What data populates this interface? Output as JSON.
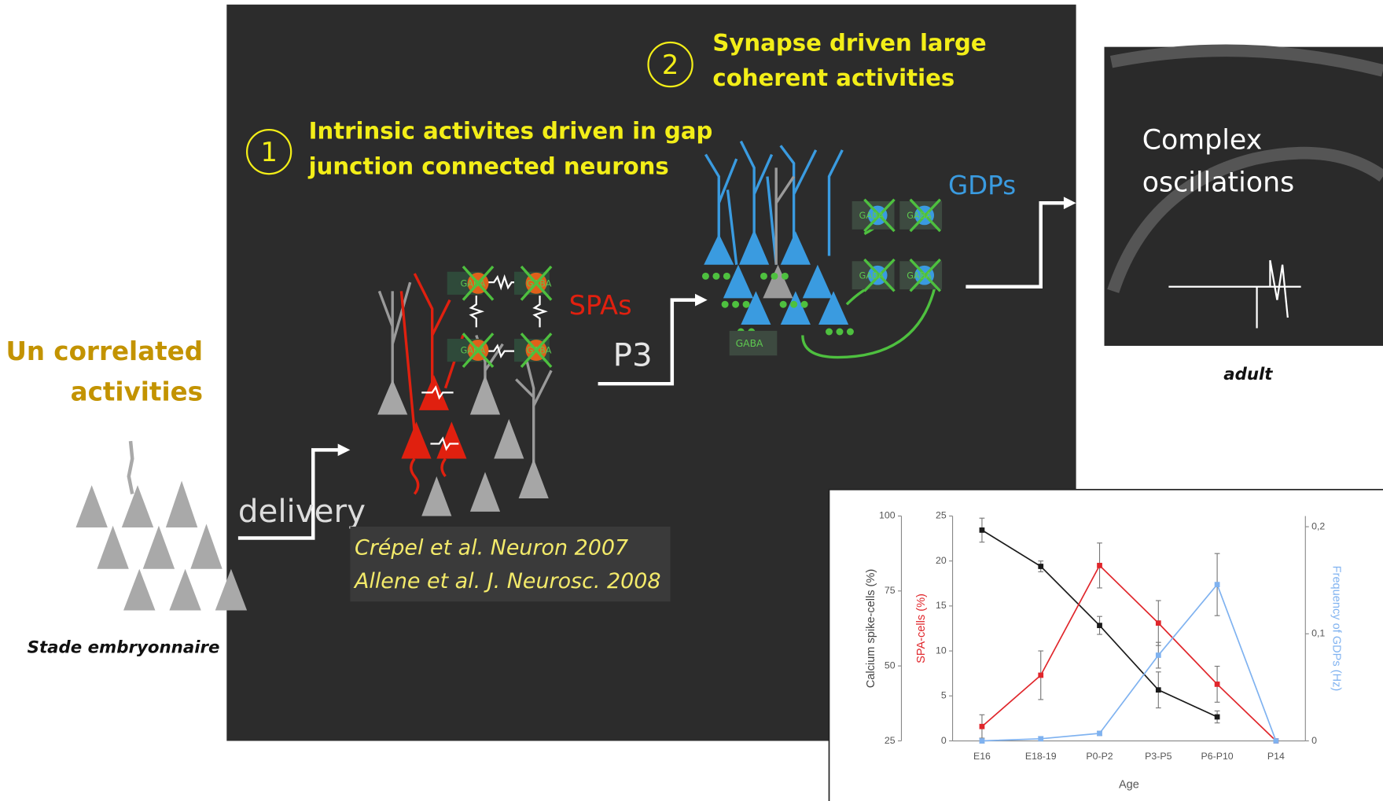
{
  "left": {
    "title_lines": [
      "Un correlated",
      "activities"
    ],
    "caption": "Stade embryonnaire"
  },
  "panel": {
    "step1": {
      "number": "1",
      "lines": [
        "Intrinsic activites driven in gap",
        "junction connected neurons"
      ]
    },
    "step2": {
      "number": "2",
      "lines": [
        "Synapse driven large",
        "coherent activities"
      ]
    },
    "labels": {
      "spas": "SPAs",
      "gdps": "GDPs",
      "p3": "P3",
      "delivery": "delivery",
      "gaba": "GABA"
    },
    "references": [
      "Crépel et al. Neuron 2007",
      "Allene et al. J. Neurosc. 2008"
    ]
  },
  "adult": {
    "image_text": [
      "Complex",
      "oscillations"
    ],
    "caption": "adult"
  },
  "chart_data": {
    "type": "line",
    "categories": [
      "E16",
      "E18-19",
      "P0-P2",
      "P3-P5",
      "P6-P10",
      "P14"
    ],
    "xlabel": "Age",
    "ylabel": "Calcium spike-cells (%)",
    "ylim": [
      25,
      100
    ],
    "yticks": [
      25,
      50,
      75,
      100
    ],
    "y2label": "SPA-cells (%)",
    "y2lim": [
      0,
      25
    ],
    "y2ticks": [
      0,
      5,
      10,
      15,
      20,
      25
    ],
    "y3label": "Frequency of GDPs (Hz)",
    "y3lim": [
      0,
      0.21
    ],
    "y3ticks": [
      0,
      {
        "value": 0.1,
        "label": "0,1"
      },
      {
        "value": 0.2,
        "label": "0,2"
      }
    ],
    "series": [
      {
        "color": "#1a1a1a",
        "axis": "y",
        "values": [
          95.3,
          83.2,
          63.5,
          42,
          33,
          null
        ],
        "errors": [
          4,
          1.8,
          3,
          6,
          2,
          null
        ]
      },
      {
        "color": "#e0262b",
        "axis": "y2",
        "values": [
          1.6,
          7.3,
          19.5,
          13.1,
          6.3,
          0
        ],
        "errors": [
          1.3,
          2.7,
          2.5,
          2.5,
          2,
          0
        ]
      },
      {
        "color": "#7fb2f0",
        "axis": "y3",
        "values": [
          0,
          0.002,
          0.007,
          0.08,
          0.146,
          0
        ],
        "errors": [
          0.002,
          0.002,
          0.002,
          0.012,
          0.029,
          0
        ]
      }
    ]
  }
}
